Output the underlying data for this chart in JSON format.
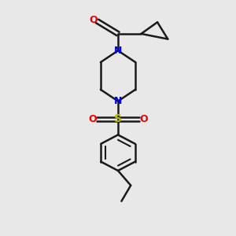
{
  "bg_color": "#e8e8e8",
  "bond_color": "#1a1a1a",
  "N_color": "#0000ee",
  "O_color": "#ee0000",
  "S_color": "#bbbb00",
  "line_width": 1.8,
  "figsize": [
    3.0,
    3.0
  ],
  "dpi": 100,
  "xlim": [
    0,
    10
  ],
  "ylim": [
    0,
    11
  ]
}
